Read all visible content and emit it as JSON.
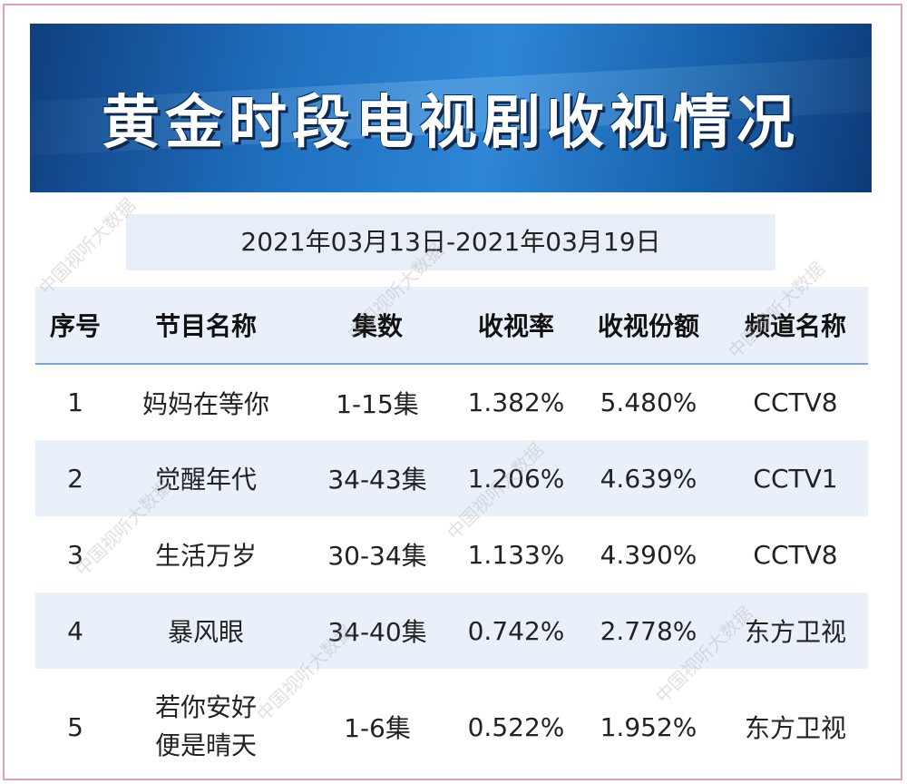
{
  "header": {
    "title": "黄金时段电视剧收视情况",
    "date_range": "2021年03月13日-2021年03月19日"
  },
  "table": {
    "columns": [
      "序号",
      "节目名称",
      "集数",
      "收视率",
      "收视份额",
      "频道名称"
    ],
    "rows": [
      {
        "index": "1",
        "name": "妈妈在等你",
        "episodes": "1-15集",
        "rating": "1.382%",
        "share": "5.480%",
        "channel": "CCTV8"
      },
      {
        "index": "2",
        "name": "觉醒年代",
        "episodes": "34-43集",
        "rating": "1.206%",
        "share": "4.639%",
        "channel": "CCTV1"
      },
      {
        "index": "3",
        "name": "生活万岁",
        "episodes": "30-34集",
        "rating": "1.133%",
        "share": "4.390%",
        "channel": "CCTV8"
      },
      {
        "index": "4",
        "name": "暴风眼",
        "episodes": "34-40集",
        "rating": "0.742%",
        "share": "2.778%",
        "channel": "东方卫视"
      },
      {
        "index": "5",
        "name_line1": "若你安好",
        "name_line2": "便是晴天",
        "episodes": "1-6集",
        "rating": "0.522%",
        "share": "1.952%",
        "channel": "东方卫视"
      }
    ]
  },
  "watermark": "中国视听大数据",
  "colors": {
    "banner_dark": "#0f3f7e",
    "banner_light": "#2e86d6",
    "row_stripe": "#e9f0fa",
    "frame_border": "#e6a2a2"
  }
}
